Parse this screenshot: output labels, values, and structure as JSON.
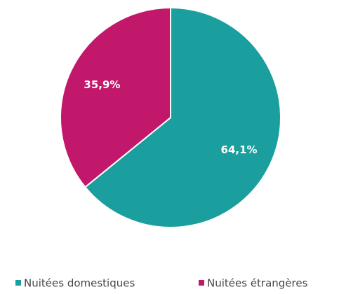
{
  "chart_data": {
    "type": "pie",
    "categories": [
      "Nuitées domestiques",
      "Nuitées étrangères"
    ],
    "values": [
      64.1,
      35.9
    ],
    "value_labels": [
      "64,1%",
      "35,9%"
    ],
    "colors": [
      "#1a9e9e",
      "#c2186b"
    ],
    "legend": "bottom"
  }
}
